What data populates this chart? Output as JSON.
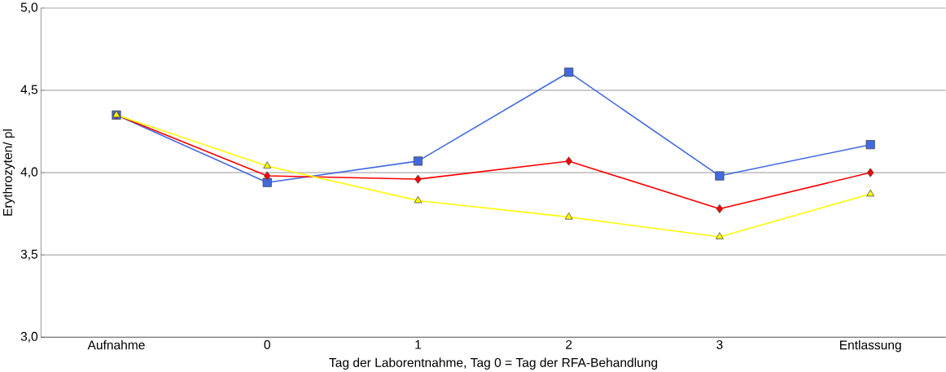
{
  "chart_data": {
    "type": "line",
    "xlabel": "Tag der Laborentnahme, Tag 0 = Tag der RFA-Behandlung",
    "ylabel": "Erythrozyten/ pl",
    "categories": [
      "Aufnahme",
      "0",
      "1",
      "2",
      "3",
      "Entlassung"
    ],
    "series": [
      {
        "color": "#4169e1",
        "marker": "square",
        "values": [
          4.35,
          3.94,
          4.07,
          4.61,
          3.98,
          4.17
        ]
      },
      {
        "color": "#ff0000",
        "marker": "diamond",
        "values": [
          4.35,
          3.98,
          3.96,
          4.07,
          3.78,
          4.0
        ]
      },
      {
        "color": "#ffff00",
        "marker": "triangle",
        "values": [
          4.35,
          4.04,
          3.83,
          3.73,
          3.61,
          3.87
        ]
      }
    ],
    "ylim": [
      3.0,
      5.0
    ],
    "yticks": [
      {
        "value": 3.0,
        "label": "3,0"
      },
      {
        "value": 3.5,
        "label": "3,5"
      },
      {
        "value": 4.0,
        "label": "4,0"
      },
      {
        "value": 4.5,
        "label": "4,5"
      },
      {
        "value": 5.0,
        "label": "5,0"
      }
    ],
    "grid": "y"
  }
}
